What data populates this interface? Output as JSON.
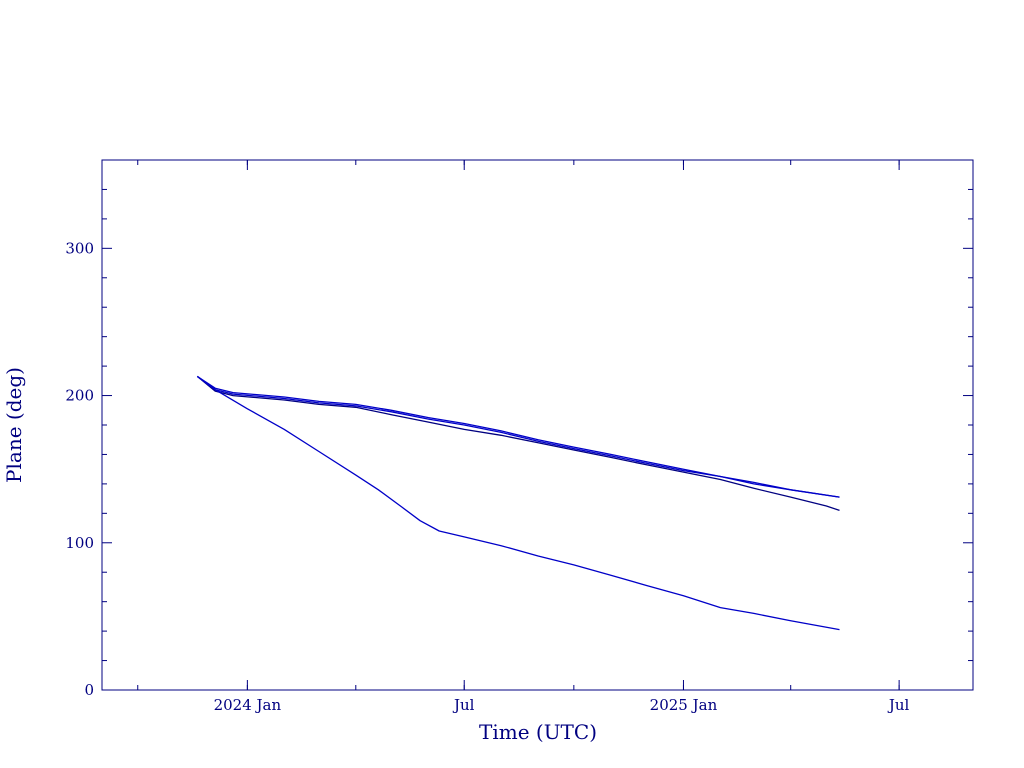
{
  "chart_data": {
    "type": "line",
    "title": "",
    "xlabel": "Time (UTC)",
    "ylabel": "Plane (deg)",
    "ylim": [
      0,
      360
    ],
    "xlim": [
      "2023-09-01",
      "2025-09-01"
    ],
    "x_ticks": [
      {
        "date": "2024-01-01",
        "label": "2024 Jan"
      },
      {
        "date": "2024-07-01",
        "label": "Jul"
      },
      {
        "date": "2025-01-01",
        "label": "2025 Jan"
      },
      {
        "date": "2025-07-01",
        "label": "Jul"
      }
    ],
    "y_ticks": [
      {
        "value": 0,
        "label": "0"
      },
      {
        "value": 100,
        "label": "100"
      },
      {
        "value": 200,
        "label": "200"
      },
      {
        "value": 300,
        "label": "300"
      }
    ],
    "grid": false,
    "color": "#000080",
    "series": [
      {
        "points": [
          [
            "2023-11-20",
            213
          ],
          [
            "2023-12-05",
            203
          ],
          [
            "2023-12-20",
            200
          ],
          [
            "2024-02-01",
            197
          ],
          [
            "2024-03-01",
            194
          ],
          [
            "2024-04-01",
            192
          ],
          [
            "2024-05-01",
            187
          ],
          [
            "2024-06-01",
            182
          ],
          [
            "2024-07-01",
            177
          ],
          [
            "2024-08-01",
            173
          ],
          [
            "2024-09-01",
            168
          ],
          [
            "2024-10-01",
            163
          ],
          [
            "2024-11-01",
            158
          ],
          [
            "2024-12-01",
            153
          ],
          [
            "2025-01-01",
            148
          ],
          [
            "2025-02-01",
            143
          ],
          [
            "2025-03-01",
            137
          ],
          [
            "2025-04-01",
            131
          ],
          [
            "2025-05-01",
            125
          ],
          [
            "2025-05-12",
            122
          ]
        ]
      },
      {
        "points": [
          [
            "2023-11-20",
            213
          ],
          [
            "2023-12-05",
            204
          ],
          [
            "2023-12-20",
            201
          ],
          [
            "2024-02-01",
            198
          ],
          [
            "2024-03-01",
            195
          ],
          [
            "2024-04-01",
            193
          ],
          [
            "2024-05-01",
            189
          ],
          [
            "2024-06-01",
            184
          ],
          [
            "2024-07-01",
            180
          ],
          [
            "2024-08-01",
            175
          ],
          [
            "2024-09-01",
            169
          ],
          [
            "2024-10-01",
            164
          ],
          [
            "2024-11-01",
            159
          ],
          [
            "2024-12-01",
            154
          ],
          [
            "2025-01-01",
            149
          ],
          [
            "2025-02-01",
            145
          ],
          [
            "2025-03-01",
            140
          ],
          [
            "2025-04-01",
            136
          ],
          [
            "2025-05-12",
            131
          ]
        ]
      },
      {
        "points": [
          [
            "2023-11-20",
            213
          ],
          [
            "2023-12-05",
            205
          ],
          [
            "2023-12-20",
            202
          ],
          [
            "2024-02-01",
            199
          ],
          [
            "2024-03-01",
            196
          ],
          [
            "2024-04-01",
            194
          ],
          [
            "2024-05-01",
            190
          ],
          [
            "2024-06-01",
            185
          ],
          [
            "2024-07-01",
            181
          ],
          [
            "2024-08-01",
            176
          ],
          [
            "2024-09-01",
            170
          ],
          [
            "2024-10-01",
            165
          ],
          [
            "2024-11-01",
            160
          ],
          [
            "2024-12-01",
            155
          ],
          [
            "2025-01-01",
            150
          ],
          [
            "2025-02-01",
            145
          ],
          [
            "2025-03-01",
            141
          ],
          [
            "2025-04-01",
            136
          ],
          [
            "2025-05-12",
            131
          ]
        ]
      },
      {
        "points": [
          [
            "2023-11-20",
            213
          ],
          [
            "2023-12-05",
            204
          ],
          [
            "2024-01-01",
            191
          ],
          [
            "2024-02-01",
            177
          ],
          [
            "2024-03-01",
            162
          ],
          [
            "2024-04-01",
            146
          ],
          [
            "2024-04-20",
            136
          ],
          [
            "2024-05-10",
            124
          ],
          [
            "2024-05-25",
            115
          ],
          [
            "2024-06-10",
            108
          ],
          [
            "2024-07-01",
            104
          ],
          [
            "2024-08-01",
            98
          ],
          [
            "2024-09-01",
            91
          ],
          [
            "2024-10-01",
            85
          ],
          [
            "2024-11-01",
            78
          ],
          [
            "2024-12-01",
            71
          ],
          [
            "2025-01-01",
            64
          ],
          [
            "2025-02-01",
            56
          ],
          [
            "2025-03-01",
            52
          ],
          [
            "2025-04-01",
            47
          ],
          [
            "2025-05-12",
            41
          ]
        ]
      }
    ]
  }
}
